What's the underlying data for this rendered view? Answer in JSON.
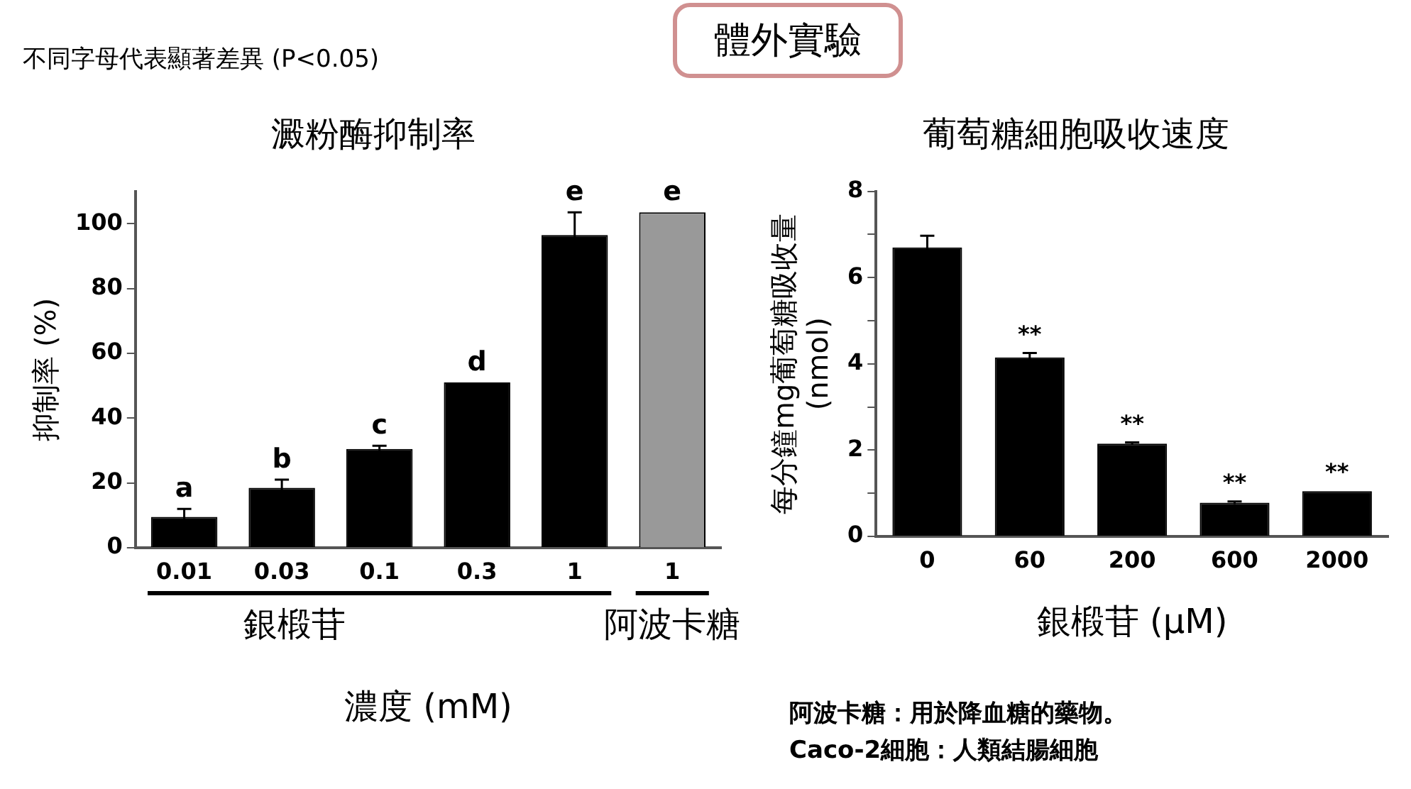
{
  "chart_data": [
    {
      "type": "bar",
      "title": "澱粉酶抑制率",
      "xlabel": "濃度 (mM)",
      "ylabel": "抑制率 (%)",
      "categories": [
        "0.01",
        "0.03",
        "0.1",
        "0.3",
        "1",
        "1"
      ],
      "values": [
        9.5,
        18.5,
        30.5,
        51,
        96.5,
        103.5
      ],
      "errors": [
        2.5,
        2.5,
        1,
        null,
        7,
        null
      ],
      "colors": [
        "#000000",
        "#000000",
        "#000000",
        "#000000",
        "#000000",
        "#999999"
      ],
      "value_labels": [
        "a",
        "b",
        "c",
        "d",
        "e",
        "e"
      ],
      "ylim": [
        0,
        110
      ],
      "yticks": [
        0,
        20,
        40,
        60,
        80,
        100
      ],
      "grid": false,
      "legend": false,
      "annotations": [
        "不同字母代表顯著差異 (P<0.05)",
        "體外實驗",
        "銀椴苷",
        "阿波卡糖"
      ]
    },
    {
      "type": "bar",
      "title": "葡萄糖細胞吸收速度",
      "xlabel": "銀椴苷 (μM)",
      "ylabel": "每分鐘mg葡萄糖吸收量\n(nmol)",
      "categories": [
        "0",
        "60",
        "200",
        "600",
        "2000"
      ],
      "values": [
        6.7,
        4.15,
        2.15,
        0.78,
        1.05
      ],
      "errors": [
        0.27,
        0.1,
        0.03,
        0.03,
        null
      ],
      "color": "#000000",
      "value_labels": [
        null,
        "**",
        "**",
        "**",
        "**"
      ],
      "ylim": [
        0,
        8
      ],
      "yticks": [
        0,
        {
          "value": 1,
          "label": null
        },
        2,
        {
          "value": 3,
          "label": null
        },
        4,
        {
          "value": 5,
          "label": null
        },
        6,
        {
          "value": 7,
          "label": null
        },
        8
      ],
      "grid": false,
      "legend": false,
      "annotations": [
        "阿波卡糖：用於降血糖的藥物。",
        "Caco-2細胞：人類結腸細胞"
      ]
    }
  ]
}
